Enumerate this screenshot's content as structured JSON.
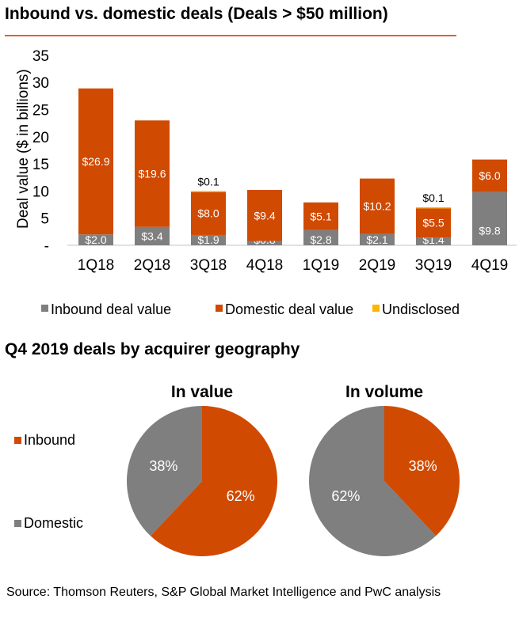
{
  "title": "Inbound vs. domestic deals (Deals > $50 million)",
  "subtitle": "Q4 2019 deals by acquirer geography",
  "source": "Source: Thomson Reuters, S&P Global Market Intelligence and PwC analysis",
  "colors": {
    "inbound": "#7f7f7f",
    "domestic": "#d04a02",
    "undisclosed": "#ffb600",
    "accent": "#e0632a"
  },
  "chart_data": [
    {
      "type": "bar",
      "stacked": true,
      "ylabel": "Deal value ($ in billions)",
      "ylim": [
        0,
        35
      ],
      "yticks": [
        "-",
        "5",
        "10",
        "15",
        "20",
        "25",
        "30",
        "35"
      ],
      "categories": [
        "1Q18",
        "2Q18",
        "3Q18",
        "4Q18",
        "1Q19",
        "2Q19",
        "3Q19",
        "4Q19"
      ],
      "series": [
        {
          "name": "Inbound deal value",
          "values": [
            2.0,
            3.4,
            1.9,
            0.8,
            2.8,
            2.1,
            1.4,
            9.8
          ],
          "labels": [
            "$2.0",
            "$3.4",
            "$1.9",
            "$0.8",
            "$2.8",
            "$2.1",
            "$1.4",
            "$9.8"
          ]
        },
        {
          "name": "Domestic deal value",
          "values": [
            26.9,
            19.6,
            8.0,
            9.4,
            5.1,
            10.2,
            5.5,
            6.0
          ],
          "labels": [
            "$26.9",
            "$19.6",
            "$8.0",
            "$9.4",
            "$5.1",
            "$10.2",
            "$5.5",
            "$6.0"
          ]
        },
        {
          "name": "Undisclosed",
          "values": [
            0,
            0,
            0.1,
            0,
            0,
            0,
            0.1,
            0
          ],
          "labels": [
            "",
            "",
            "$0.1",
            "",
            "",
            "",
            "$0.1",
            ""
          ]
        }
      ],
      "legend": "bottom"
    },
    {
      "type": "pie",
      "title": "In value",
      "slices": [
        {
          "name": "Inbound",
          "value": 62,
          "label": "62%"
        },
        {
          "name": "Domestic",
          "value": 38,
          "label": "38%"
        }
      ]
    },
    {
      "type": "pie",
      "title": "In volume",
      "slices": [
        {
          "name": "Inbound",
          "value": 38,
          "label": "38%"
        },
        {
          "name": "Domestic",
          "value": 62,
          "label": "62%"
        }
      ]
    }
  ],
  "pie_legend": [
    "Inbound",
    "Domestic"
  ]
}
